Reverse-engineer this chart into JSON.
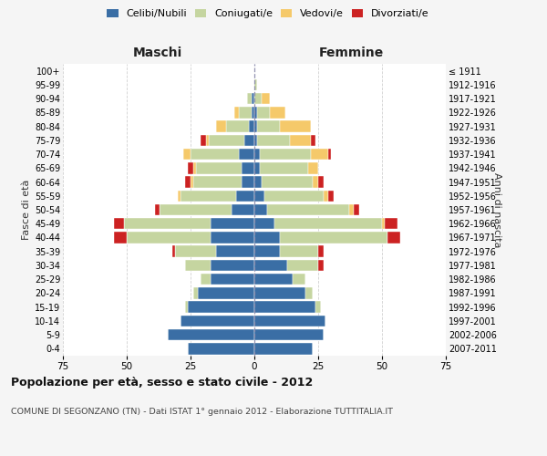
{
  "age_groups": [
    "0-4",
    "5-9",
    "10-14",
    "15-19",
    "20-24",
    "25-29",
    "30-34",
    "35-39",
    "40-44",
    "45-49",
    "50-54",
    "55-59",
    "60-64",
    "65-69",
    "70-74",
    "75-79",
    "80-84",
    "85-89",
    "90-94",
    "95-99",
    "100+"
  ],
  "birth_years": [
    "2007-2011",
    "2002-2006",
    "1997-2001",
    "1992-1996",
    "1987-1991",
    "1982-1986",
    "1977-1981",
    "1972-1976",
    "1967-1971",
    "1962-1966",
    "1957-1961",
    "1952-1956",
    "1947-1951",
    "1942-1946",
    "1937-1941",
    "1932-1936",
    "1927-1931",
    "1922-1926",
    "1917-1921",
    "1912-1916",
    "≤ 1911"
  ],
  "colors": {
    "celibe": "#3a6ea5",
    "coniugato": "#c5d5a0",
    "vedovo": "#f5c96a",
    "divorziato": "#cc2222"
  },
  "maschi": {
    "celibe": [
      26,
      34,
      29,
      26,
      22,
      17,
      17,
      15,
      17,
      17,
      9,
      7,
      5,
      5,
      6,
      4,
      2,
      1,
      1,
      0,
      0
    ],
    "coniugato": [
      0,
      0,
      0,
      1,
      2,
      4,
      10,
      16,
      33,
      34,
      28,
      22,
      19,
      18,
      19,
      14,
      9,
      5,
      2,
      0,
      0
    ],
    "vedovo": [
      0,
      0,
      0,
      0,
      0,
      0,
      0,
      0,
      0,
      0,
      0,
      1,
      1,
      1,
      3,
      1,
      4,
      2,
      0,
      0,
      0
    ],
    "divorziato": [
      0,
      0,
      0,
      0,
      0,
      0,
      0,
      1,
      5,
      4,
      2,
      0,
      2,
      2,
      0,
      2,
      0,
      0,
      0,
      0,
      0
    ]
  },
  "femmine": {
    "nubile": [
      23,
      27,
      28,
      24,
      20,
      15,
      13,
      10,
      10,
      8,
      5,
      4,
      3,
      2,
      2,
      1,
      1,
      1,
      0,
      0,
      0
    ],
    "coniugata": [
      0,
      0,
      0,
      2,
      3,
      5,
      12,
      15,
      42,
      42,
      32,
      23,
      20,
      19,
      20,
      13,
      9,
      5,
      3,
      1,
      0
    ],
    "vedova": [
      0,
      0,
      0,
      0,
      0,
      0,
      0,
      0,
      0,
      1,
      2,
      2,
      2,
      4,
      7,
      8,
      12,
      6,
      3,
      0,
      0
    ],
    "divorziata": [
      0,
      0,
      0,
      0,
      0,
      0,
      2,
      2,
      5,
      5,
      2,
      2,
      2,
      0,
      1,
      2,
      0,
      0,
      0,
      0,
      0
    ]
  },
  "xlim": 75,
  "title": "Popolazione per età, sesso e stato civile - 2012",
  "subtitle": "COMUNE DI SEGONZANO (TN) - Dati ISTAT 1° gennaio 2012 - Elaborazione TUTTITALIA.IT",
  "ylabel_left": "Fasce di età",
  "ylabel_right": "Anni di nascita",
  "legend_labels": [
    "Celibi/Nubili",
    "Coniugati/e",
    "Vedovi/e",
    "Divorziati/e"
  ],
  "maschi_label": "Maschi",
  "femmine_label": "Femmine",
  "bg_color": "#f5f5f5",
  "plot_bg_color": "#ffffff",
  "grid_color": "#cccccc"
}
